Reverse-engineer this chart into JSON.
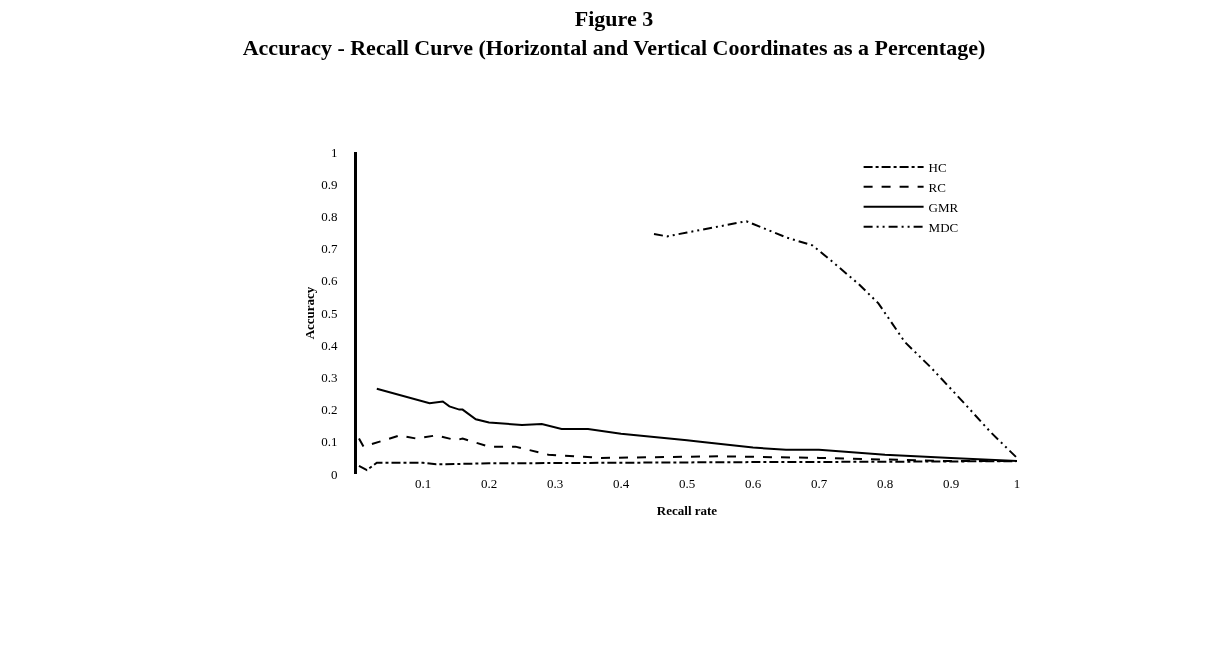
{
  "chart_data": {
    "type": "line",
    "title": "Figure 3",
    "subtitle": "Accuracy - Recall Curve (Horizontal and Vertical Coordinates as a Percentage)",
    "xlabel": "Recall rate",
    "ylabel": "Accuracy",
    "xlim": [
      0,
      1
    ],
    "ylim": [
      0,
      1
    ],
    "xticks": [
      0.1,
      0.2,
      0.3,
      0.4,
      0.5,
      0.6,
      0.7,
      0.8,
      0.9,
      1
    ],
    "yticks": [
      0,
      0.1,
      0.2,
      0.3,
      0.4,
      0.5,
      0.6,
      0.7,
      0.8,
      0.9,
      1
    ],
    "legend": "top right",
    "marker": "none",
    "series": [
      {
        "name": "HC",
        "color": "#000000",
        "line_style": "dashdot",
        "x": [
          0.003,
          0.015,
          0.03,
          0.1,
          0.12,
          0.2,
          0.4,
          0.6,
          0.8,
          1
        ],
        "values": [
          0.025,
          0.012,
          0.035,
          0.035,
          0.03,
          0.033,
          0.035,
          0.037,
          0.038,
          0.04
        ]
      },
      {
        "name": "RC",
        "color": "#000000",
        "line_style": "dashed",
        "x": [
          0.003,
          0.01,
          0.065,
          0.09,
          0.12,
          0.15,
          0.16,
          0.2,
          0.24,
          0.29,
          0.37,
          0.55,
          0.7,
          0.9,
          1
        ],
        "values": [
          0.11,
          0.085,
          0.12,
          0.11,
          0.12,
          0.105,
          0.11,
          0.085,
          0.085,
          0.06,
          0.05,
          0.055,
          0.05,
          0.04,
          0.04
        ]
      },
      {
        "name": "GMR",
        "color": "#000000",
        "line_style": "solid",
        "x": [
          0.03,
          0.11,
          0.13,
          0.14,
          0.155,
          0.16,
          0.18,
          0.2,
          0.25,
          0.28,
          0.31,
          0.35,
          0.4,
          0.5,
          0.52,
          0.6,
          0.65,
          0.7,
          0.8,
          0.9,
          1
        ],
        "values": [
          0.265,
          0.22,
          0.225,
          0.21,
          0.2,
          0.2,
          0.17,
          0.16,
          0.152,
          0.155,
          0.14,
          0.14,
          0.125,
          0.105,
          0.1,
          0.082,
          0.075,
          0.075,
          0.06,
          0.05,
          0.04
        ]
      },
      {
        "name": "MDC",
        "color": "#000000",
        "line_style": "dashdotdot",
        "x": [
          0.45,
          0.47,
          0.5,
          0.59,
          0.65,
          0.69,
          0.72,
          0.76,
          0.79,
          0.81,
          0.83,
          0.87,
          0.92,
          0.96,
          1
        ],
        "values": [
          0.745,
          0.738,
          0.75,
          0.785,
          0.735,
          0.71,
          0.66,
          0.59,
          0.53,
          0.47,
          0.41,
          0.33,
          0.22,
          0.13,
          0.05
        ]
      }
    ]
  }
}
